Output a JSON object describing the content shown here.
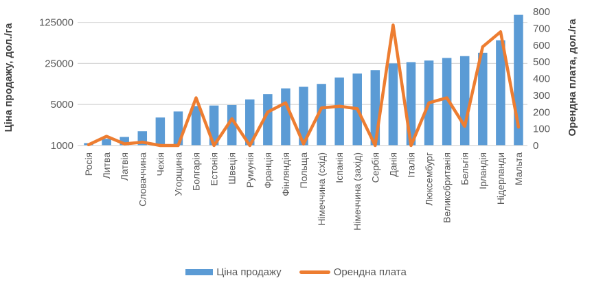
{
  "chart_data": {
    "type": "bar",
    "subtype": "combo-bar-line-dual-axis",
    "title": "",
    "categories": [
      "Росія",
      "Литва",
      "Латвія",
      "Словаччина",
      "Чехія",
      "Угорщина",
      "Болгарія",
      "Естонія",
      "Швеція",
      "Румунія",
      "Франція",
      "Фінляндія",
      "Польща",
      "Німеччина (схід)",
      "Іспанія",
      "Німеччина (захід)",
      "Сербія",
      "Данія",
      "Італія",
      "Люксембург",
      "Великобританія",
      "Бельгія",
      "Ірландія",
      "Нідерланди",
      "Мальта"
    ],
    "series": [
      {
        "name": "Ціна продажу",
        "type": "bar",
        "axis": "left",
        "color": "#5B9BD5",
        "values": [
          1100,
          1300,
          1400,
          1750,
          3000,
          3800,
          4700,
          4800,
          4900,
          6100,
          7500,
          9400,
          10000,
          11200,
          14400,
          16800,
          19200,
          25000,
          26300,
          28000,
          31000,
          33300,
          38000,
          62000,
          168000
        ]
      },
      {
        "name": "Орендна плата",
        "type": "line",
        "axis": "right",
        "color": "#ED7D31",
        "values": [
          5,
          55,
          10,
          20,
          0,
          0,
          285,
          0,
          160,
          0,
          200,
          255,
          10,
          225,
          235,
          220,
          0,
          720,
          0,
          255,
          285,
          115,
          590,
          680,
          110
        ]
      }
    ],
    "left_axis": {
      "title": "Ціна продажу, дол./га",
      "scale": "log-base5",
      "ticks": [
        1000,
        5000,
        25000,
        125000
      ],
      "min": 1000
    },
    "right_axis": {
      "title": "Орендна плата, дол./га",
      "scale": "linear",
      "ticks": [
        0,
        100,
        200,
        300,
        400,
        500,
        600,
        700,
        800
      ],
      "min": 0,
      "max": 800
    },
    "grid": "horizontal-only",
    "legend_position": "bottom",
    "x_label_rotation": "90deg-bottom-to-top"
  },
  "legend": {
    "items": [
      {
        "label": "Ціна продажу",
        "swatch": "bar",
        "color": "#5B9BD5"
      },
      {
        "label": "Орендна плата",
        "swatch": "line",
        "color": "#ED7D31"
      }
    ]
  },
  "colors": {
    "bar_blue": "#5B9BD5",
    "line_orange": "#ED7D31",
    "gridline": "#D9D9D9",
    "tick_text": "#595959",
    "axis_title_text": "#404040",
    "background": "#FFFFFF"
  }
}
